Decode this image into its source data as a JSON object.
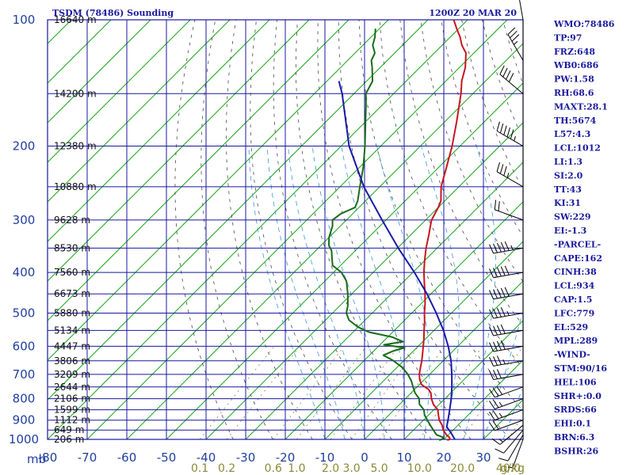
{
  "header": {
    "station": "TSDM (78486) Sounding",
    "time": "1200Z 20 MAR 20"
  },
  "chart_data": {
    "type": "line",
    "xlabel": "",
    "ylabel": "mb",
    "pressure_ticks": [
      100,
      200,
      300,
      400,
      500,
      600,
      700,
      800,
      900,
      1000
    ],
    "temperature_ticks": [
      -80,
      -70,
      -60,
      -50,
      -40,
      -30,
      -20,
      -10,
      0,
      10,
      20,
      30
    ],
    "temperature_tick_labels": [
      "-80",
      "-70",
      "-60",
      "-50",
      "-40",
      "-30",
      "-20",
      "-10",
      "0",
      "10",
      "20",
      "30"
    ],
    "mixing_ratio_labels": [
      {
        "text": "0.1",
        "g": 0.1
      },
      {
        "text": "0.2",
        "g": 0.2
      },
      {
        "text": "0.6",
        "g": 0.6
      },
      {
        "text": "1.0",
        "g": 1.0
      },
      {
        "text": "2.0",
        "g": 2.0
      },
      {
        "text": "3.0",
        "g": 3.0
      },
      {
        "text": "5.0",
        "g": 5.0
      },
      {
        "text": "10.0",
        "g": 10.0
      },
      {
        "text": "20.0",
        "g": 20.0
      },
      {
        "text": "40.0",
        "g": 40.0
      }
    ],
    "mixing_ratio_unit": "g/kg",
    "height_labels": [
      {
        "text": "16640 m",
        "p": 100
      },
      {
        "text": "14200 m",
        "p": 150
      },
      {
        "text": "12380 m",
        "p": 200
      },
      {
        "text": "10880 m",
        "p": 250
      },
      {
        "text": "9628 m",
        "p": 300
      },
      {
        "text": "8530 m",
        "p": 350
      },
      {
        "text": "7560 m",
        "p": 400
      },
      {
        "text": "6673 m",
        "p": 450
      },
      {
        "text": "5880 m",
        "p": 500
      },
      {
        "text": "5134 m",
        "p": 550
      },
      {
        "text": "4447 m",
        "p": 600
      },
      {
        "text": "3806 m",
        "p": 650
      },
      {
        "text": "3209 m",
        "p": 700
      },
      {
        "text": "2644 m",
        "p": 750
      },
      {
        "text": "2106 m",
        "p": 800
      },
      {
        "text": "1599 m",
        "p": 850
      },
      {
        "text": "1112 m",
        "p": 900
      },
      {
        "text": "649 m",
        "p": 950
      },
      {
        "text": "206 m",
        "p": 1000
      }
    ],
    "series": [
      {
        "key": "temperature",
        "color": "#c8161d",
        "points": [
          [
            1004,
            21.0
          ],
          [
            1000,
            21.5
          ],
          [
            990,
            21.0
          ],
          [
            975,
            19.5
          ],
          [
            950,
            17.5
          ],
          [
            925,
            16.0
          ],
          [
            900,
            14.0
          ],
          [
            875,
            12.5
          ],
          [
            850,
            11.0
          ],
          [
            825,
            8.5
          ],
          [
            800,
            6.6
          ],
          [
            775,
            5.0
          ],
          [
            760,
            3.5
          ],
          [
            750,
            2.0
          ],
          [
            740,
            0.5
          ],
          [
            720,
            -1.2
          ],
          [
            700,
            -2.6
          ],
          [
            675,
            -4.0
          ],
          [
            650,
            -5.4
          ],
          [
            625,
            -7.0
          ],
          [
            600,
            -8.7
          ],
          [
            575,
            -10.5
          ],
          [
            550,
            -12.5
          ],
          [
            525,
            -14.5
          ],
          [
            500,
            -16.8
          ],
          [
            475,
            -19.0
          ],
          [
            450,
            -21.5
          ],
          [
            425,
            -24.3
          ],
          [
            400,
            -27.2
          ],
          [
            375,
            -30.0
          ],
          [
            350,
            -32.8
          ],
          [
            325,
            -35.5
          ],
          [
            310,
            -37.3
          ],
          [
            300,
            -38.5
          ],
          [
            280,
            -40.0
          ],
          [
            270,
            -41.0
          ],
          [
            250,
            -44.5
          ],
          [
            225,
            -48.0
          ],
          [
            200,
            -52.0
          ],
          [
            175,
            -57.0
          ],
          [
            150,
            -63.0
          ],
          [
            140,
            -66.0
          ],
          [
            130,
            -68.5
          ],
          [
            120,
            -72.0
          ],
          [
            115,
            -75.0
          ],
          [
            110,
            -77.5
          ],
          [
            105,
            -80.5
          ],
          [
            100,
            -83.5
          ]
        ]
      },
      {
        "key": "dewpoint",
        "color": "#1a6b1a",
        "points": [
          [
            1004,
            19.0
          ],
          [
            1000,
            19.5
          ],
          [
            990,
            19.5
          ],
          [
            975,
            17.0
          ],
          [
            950,
            15.0
          ],
          [
            925,
            13.0
          ],
          [
            900,
            11.0
          ],
          [
            875,
            9.0
          ],
          [
            850,
            7.5
          ],
          [
            825,
            5.0
          ],
          [
            800,
            3.5
          ],
          [
            775,
            1.0
          ],
          [
            750,
            -1.0
          ],
          [
            725,
            -3.0
          ],
          [
            700,
            -5.5
          ],
          [
            675,
            -8.5
          ],
          [
            650,
            -12.5
          ],
          [
            630,
            -16.5
          ],
          [
            615,
            -15.0
          ],
          [
            605,
            -13.0
          ],
          [
            595,
            -19.0
          ],
          [
            585,
            -15.0
          ],
          [
            570,
            -19.0
          ],
          [
            555,
            -26.0
          ],
          [
            540,
            -30.0
          ],
          [
            520,
            -34.0
          ],
          [
            500,
            -36.5
          ],
          [
            480,
            -38.0
          ],
          [
            450,
            -41.0
          ],
          [
            420,
            -44.5
          ],
          [
            400,
            -48.0
          ],
          [
            385,
            -52.0
          ],
          [
            370,
            -54.0
          ],
          [
            355,
            -56.0
          ],
          [
            345,
            -58.0
          ],
          [
            330,
            -60.0
          ],
          [
            310,
            -62.0
          ],
          [
            300,
            -63.5
          ],
          [
            290,
            -63.0
          ],
          [
            280,
            -61.0
          ],
          [
            270,
            -62.0
          ],
          [
            250,
            -65.0
          ],
          [
            225,
            -69.0
          ],
          [
            200,
            -74.0
          ],
          [
            175,
            -80.0
          ],
          [
            160,
            -84.0
          ],
          [
            150,
            -87.0
          ],
          [
            140,
            -88.5
          ],
          [
            130,
            -92.0
          ],
          [
            125,
            -94.0
          ],
          [
            120,
            -95.0
          ],
          [
            115,
            -97.5
          ],
          [
            110,
            -99.0
          ],
          [
            105,
            -101.0
          ]
        ]
      },
      {
        "key": "parcel",
        "color": "#1a1aa8",
        "points": [
          [
            1000,
            22.8
          ],
          [
            960,
            19.8
          ],
          [
            934,
            17.6
          ],
          [
            900,
            16.2
          ],
          [
            850,
            14.0
          ],
          [
            800,
            11.6
          ],
          [
            750,
            8.8
          ],
          [
            700,
            5.6
          ],
          [
            650,
            2.0
          ],
          [
            600,
            -2.4
          ],
          [
            550,
            -7.6
          ],
          [
            500,
            -13.8
          ],
          [
            450,
            -21.0
          ],
          [
            400,
            -29.6
          ],
          [
            350,
            -39.8
          ],
          [
            300,
            -51.0
          ],
          [
            250,
            -64.0
          ],
          [
            200,
            -78.0
          ],
          [
            150,
            -93.0
          ],
          [
            140,
            -97.0
          ]
        ]
      }
    ]
  },
  "indices": [
    "WMO:78486",
    "TP:97",
    "FRZ:648",
    "WB0:686",
    "PW:1.58",
    "RH:68.6",
    "MAXT:28.1",
    "TH:5674",
    "L57:4.3",
    "LCL:1012",
    "LI:1.3",
    "SI:2.0",
    "TT:43",
    "KI:31",
    "SW:229",
    "EI:-1.3",
    "-PARCEL-",
    "CAPE:162",
    "CINH:38",
    "LCL:934",
    "CAP:1.5",
    "LFC:779",
    "EL:529",
    "MPL:289",
    "-WIND-",
    "STM:90/16",
    "HEL:106",
    "SHR+:0.0",
    "SRDS:66",
    "EHI:0.1",
    "BRN:6.3",
    "BSHR:26"
  ],
  "wind_barbs": [
    {
      "p": 1000,
      "dir": 200,
      "spd": 5
    },
    {
      "p": 975,
      "dir": 210,
      "spd": 10
    },
    {
      "p": 950,
      "dir": 220,
      "spd": 10
    },
    {
      "p": 925,
      "dir": 230,
      "spd": 15
    },
    {
      "p": 900,
      "dir": 250,
      "spd": 20
    },
    {
      "p": 850,
      "dir": 250,
      "spd": 25
    },
    {
      "p": 800,
      "dir": 250,
      "spd": 25
    },
    {
      "p": 750,
      "dir": 250,
      "spd": 30
    },
    {
      "p": 700,
      "dir": 260,
      "spd": 30
    },
    {
      "p": 650,
      "dir": 260,
      "spd": 35
    },
    {
      "p": 600,
      "dir": 260,
      "spd": 40
    },
    {
      "p": 550,
      "dir": 260,
      "spd": 40
    },
    {
      "p": 500,
      "dir": 260,
      "spd": 45
    },
    {
      "p": 450,
      "dir": 260,
      "spd": 50
    },
    {
      "p": 400,
      "dir": 260,
      "spd": 50
    },
    {
      "p": 350,
      "dir": 260,
      "spd": 55
    },
    {
      "p": 300,
      "dir": 290,
      "spd": 20
    },
    {
      "p": 250,
      "dir": 300,
      "spd": 35
    },
    {
      "p": 200,
      "dir": 300,
      "spd": 55
    },
    {
      "p": 150,
      "dir": 310,
      "spd": 40
    },
    {
      "p": 125,
      "dir": 330,
      "spd": 35
    },
    {
      "p": 100,
      "dir": 350,
      "spd": 25
    }
  ],
  "colors": {
    "isobar_grid": "#1818a0",
    "isotherm": "#17a817",
    "dry_adiabat": "#4a4a4a",
    "moist_adiabat": "#3a9ad9",
    "mixing_ratio": "#8a8a3a"
  }
}
